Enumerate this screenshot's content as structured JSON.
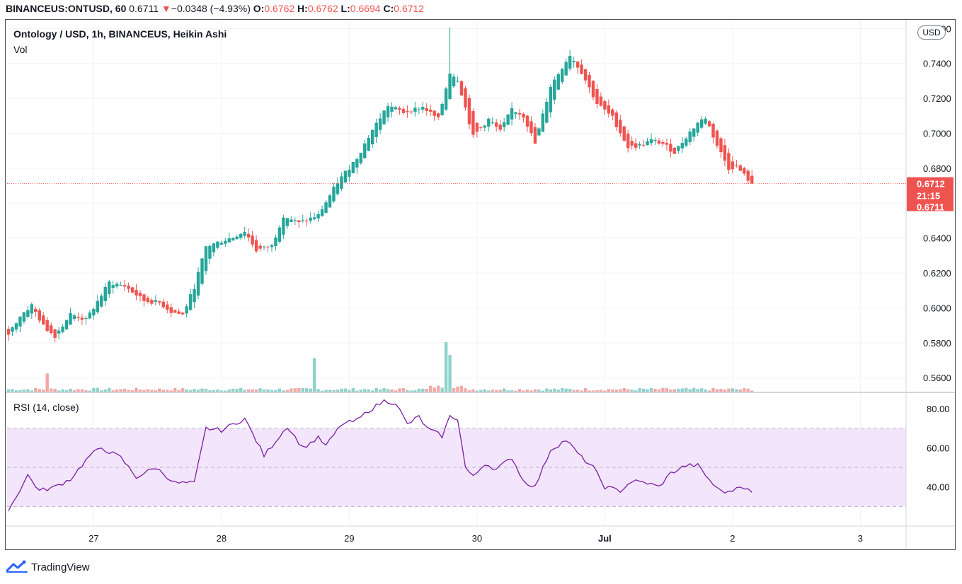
{
  "header": {
    "symbol": "BINANCEUS:ONTUSD, 60",
    "last": "0.6711",
    "change_arrow": "▼",
    "change": "−0.0348 (−4.93%)",
    "open_label": "O:",
    "open": "0.6762",
    "high_label": "H:",
    "high": "0.6762",
    "low_label": "L:",
    "low": "0.6694",
    "close_label": "C:",
    "close": "0.6712"
  },
  "legend": {
    "main": "Ontology / USD, 1h, BINANCEUS, Heikin Ashi",
    "volume": "Vol",
    "rsi": "RSI (14, close)"
  },
  "currency_button": "USD",
  "price_tags": {
    "price": "0.6712",
    "countdown": "21:15",
    "close": "0.6711"
  },
  "brand": "TradingView",
  "colors": {
    "up": "#26a69a",
    "down": "#ef5350",
    "volume_up": "#8fd1cb",
    "volume_down": "#f4a8a6",
    "rsi_line": "#7b1fa2",
    "rsi_band": "#f3e5fc",
    "grid": "#f0f3fa"
  },
  "chart_data": [
    {
      "type": "candlestick",
      "style": "Heikin Ashi",
      "y_axis": {
        "ticks": [
          0.56,
          0.58,
          0.6,
          0.62,
          0.64,
          0.68,
          0.7,
          0.72,
          0.74,
          0.76
        ],
        "range": [
          0.552,
          0.765
        ]
      },
      "x_axis": {
        "ticks": [
          "27",
          "28",
          "29",
          "30",
          "Jul",
          "2",
          "3"
        ]
      },
      "last_price_line": 0.6712,
      "keypoints": [
        {
          "x": 0.0,
          "p": 0.585
        },
        {
          "x": 3.0,
          "p": 0.5955
        },
        {
          "x": 6.0,
          "p": 0.6015
        },
        {
          "x": 9.0,
          "p": 0.5895
        },
        {
          "x": 12.0,
          "p": 0.584
        },
        {
          "x": 16.0,
          "p": 0.5965
        },
        {
          "x": 20.0,
          "p": 0.593
        },
        {
          "x": 26.0,
          "p": 0.6145
        },
        {
          "x": 30.0,
          "p": 0.6125
        },
        {
          "x": 35.0,
          "p": 0.604
        },
        {
          "x": 39.0,
          "p": 0.603
        },
        {
          "x": 42.0,
          "p": 0.5978
        },
        {
          "x": 45.0,
          "p": 0.596
        },
        {
          "x": 48.0,
          "p": 0.612
        },
        {
          "x": 51.0,
          "p": 0.635
        },
        {
          "x": 54.0,
          "p": 0.6375
        },
        {
          "x": 58.0,
          "p": 0.6405
        },
        {
          "x": 61.0,
          "p": 0.644
        },
        {
          "x": 64.0,
          "p": 0.633
        },
        {
          "x": 68.0,
          "p": 0.6355
        },
        {
          "x": 71.0,
          "p": 0.653
        },
        {
          "x": 75.0,
          "p": 0.6485
        },
        {
          "x": 80.0,
          "p": 0.653
        },
        {
          "x": 85.0,
          "p": 0.672
        },
        {
          "x": 90.0,
          "p": 0.686
        },
        {
          "x": 94.0,
          "p": 0.702
        },
        {
          "x": 98.0,
          "p": 0.716
        },
        {
          "x": 102.0,
          "p": 0.712
        },
        {
          "x": 107.0,
          "p": 0.715
        },
        {
          "x": 111.0,
          "p": 0.708
        },
        {
          "x": 114.0,
          "p": 0.735
        },
        {
          "x": 116.0,
          "p": 0.731
        },
        {
          "x": 120.0,
          "p": 0.698
        },
        {
          "x": 124.0,
          "p": 0.708
        },
        {
          "x": 127.0,
          "p": 0.701
        },
        {
          "x": 130.0,
          "p": 0.714
        },
        {
          "x": 133.0,
          "p": 0.71
        },
        {
          "x": 136.0,
          "p": 0.694
        },
        {
          "x": 140.0,
          "p": 0.727
        },
        {
          "x": 145.0,
          "p": 0.745
        },
        {
          "x": 148.0,
          "p": 0.735
        },
        {
          "x": 152.0,
          "p": 0.717
        },
        {
          "x": 156.0,
          "p": 0.709
        },
        {
          "x": 160.0,
          "p": 0.692
        },
        {
          "x": 163.0,
          "p": 0.693
        },
        {
          "x": 166.0,
          "p": 0.696
        },
        {
          "x": 169.0,
          "p": 0.694
        },
        {
          "x": 172.0,
          "p": 0.689
        },
        {
          "x": 175.0,
          "p": 0.698
        },
        {
          "x": 178.0,
          "p": 0.706
        },
        {
          "x": 180.0,
          "p": 0.709
        },
        {
          "x": 183.0,
          "p": 0.693
        },
        {
          "x": 186.0,
          "p": 0.68
        },
        {
          "x": 188.0,
          "p": 0.681
        },
        {
          "x": 190.0,
          "p": 0.676
        },
        {
          "x": 192.0,
          "p": 0.6712
        }
      ],
      "volume_spikes": [
        {
          "x": 10,
          "v": 0.0057,
          "dir": "down"
        },
        {
          "x": 79,
          "v": 0.0105,
          "dir": "up"
        },
        {
          "x": 113,
          "v": 0.0155,
          "dir": "up"
        },
        {
          "x": 114,
          "v": 0.0115,
          "dir": "up"
        }
      ]
    },
    {
      "type": "line",
      "name": "RSI (14, close)",
      "y_axis": {
        "ticks": [
          40.0,
          60.0,
          80.0
        ],
        "range": [
          20,
          88
        ],
        "band": [
          30,
          70
        ],
        "mid": 50
      },
      "keypoints": [
        {
          "x": 0,
          "v": 28
        },
        {
          "x": 5,
          "v": 46
        },
        {
          "x": 8,
          "v": 38
        },
        {
          "x": 12,
          "v": 40
        },
        {
          "x": 16,
          "v": 44
        },
        {
          "x": 21,
          "v": 56
        },
        {
          "x": 24,
          "v": 60
        },
        {
          "x": 29,
          "v": 55
        },
        {
          "x": 33,
          "v": 45
        },
        {
          "x": 38,
          "v": 50
        },
        {
          "x": 43,
          "v": 42
        },
        {
          "x": 48,
          "v": 42
        },
        {
          "x": 51,
          "v": 70
        },
        {
          "x": 55,
          "v": 69
        },
        {
          "x": 61,
          "v": 75
        },
        {
          "x": 66,
          "v": 56
        },
        {
          "x": 72,
          "v": 71
        },
        {
          "x": 76,
          "v": 60
        },
        {
          "x": 80,
          "v": 65
        },
        {
          "x": 82,
          "v": 61
        },
        {
          "x": 86,
          "v": 72
        },
        {
          "x": 90,
          "v": 74
        },
        {
          "x": 93,
          "v": 79
        },
        {
          "x": 97,
          "v": 84
        },
        {
          "x": 100,
          "v": 83
        },
        {
          "x": 103,
          "v": 72
        },
        {
          "x": 106,
          "v": 76
        },
        {
          "x": 108,
          "v": 70
        },
        {
          "x": 112,
          "v": 66
        },
        {
          "x": 114,
          "v": 76
        },
        {
          "x": 116,
          "v": 75
        },
        {
          "x": 118,
          "v": 50
        },
        {
          "x": 120,
          "v": 45
        },
        {
          "x": 123,
          "v": 52
        },
        {
          "x": 126,
          "v": 49
        },
        {
          "x": 130,
          "v": 55
        },
        {
          "x": 133,
          "v": 43
        },
        {
          "x": 136,
          "v": 40
        },
        {
          "x": 140,
          "v": 59
        },
        {
          "x": 144,
          "v": 64
        },
        {
          "x": 148,
          "v": 55
        },
        {
          "x": 151,
          "v": 50
        },
        {
          "x": 154,
          "v": 40
        },
        {
          "x": 158,
          "v": 38
        },
        {
          "x": 161,
          "v": 43
        },
        {
          "x": 165,
          "v": 42
        },
        {
          "x": 168,
          "v": 40
        },
        {
          "x": 171,
          "v": 47
        },
        {
          "x": 175,
          "v": 51
        },
        {
          "x": 178,
          "v": 51
        },
        {
          "x": 180,
          "v": 46
        },
        {
          "x": 183,
          "v": 39
        },
        {
          "x": 186,
          "v": 37
        },
        {
          "x": 189,
          "v": 41
        },
        {
          "x": 192,
          "v": 37
        }
      ]
    }
  ]
}
